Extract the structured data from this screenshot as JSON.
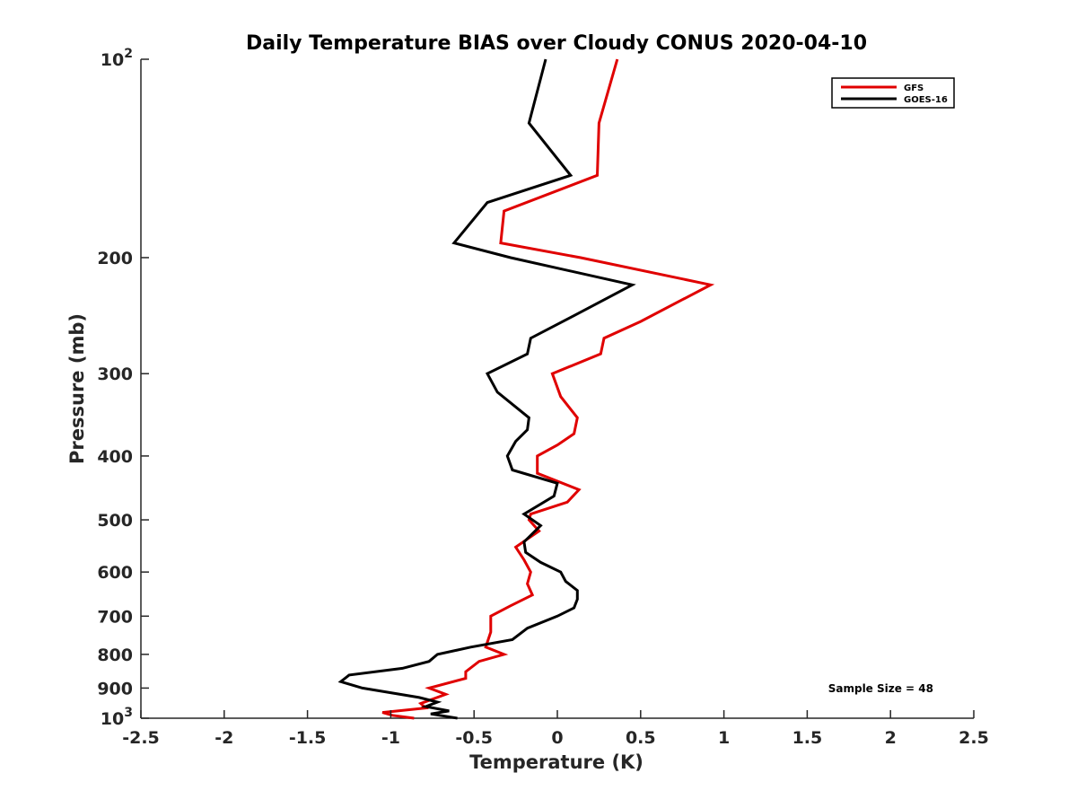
{
  "chart_data": {
    "type": "line",
    "title": "Daily Temperature BIAS over Cloudy CONUS 2020-04-10",
    "xlabel": "Temperature (K)",
    "ylabel": "Pressure (mb)",
    "xlim": [
      -2.5,
      2.5
    ],
    "ylim": [
      100,
      1000
    ],
    "y_scale": "log",
    "y_reversed": true,
    "x_ticks": [
      -2.5,
      -2,
      -1.5,
      -1,
      -0.5,
      0,
      0.5,
      1,
      1.5,
      2,
      2.5
    ],
    "x_tick_labels": [
      "-2.5",
      "-2",
      "-1.5",
      "-1",
      "-0.5",
      "0",
      "0.5",
      "1",
      "1.5",
      "2",
      "2.5"
    ],
    "y_ticks": [
      {
        "value": 100,
        "base": "10",
        "exp": "2"
      },
      {
        "value": 200,
        "label": "200"
      },
      {
        "value": 300,
        "label": "300"
      },
      {
        "value": 400,
        "label": "400"
      },
      {
        "value": 500,
        "label": "500"
      },
      {
        "value": 600,
        "label": "600"
      },
      {
        "value": 700,
        "label": "700"
      },
      {
        "value": 800,
        "label": "800"
      },
      {
        "value": 900,
        "label": "900"
      },
      {
        "value": 1000,
        "base": "10",
        "exp": "3"
      }
    ],
    "grid": false,
    "legend_position": "top-right",
    "annotation": "Sample Size = 48",
    "series": [
      {
        "name": "GFS",
        "color": "#e00000",
        "points": [
          [
            0.36,
            100
          ],
          [
            0.25,
            125
          ],
          [
            0.24,
            150
          ],
          [
            -0.32,
            170
          ],
          [
            -0.34,
            190
          ],
          [
            0.14,
            200
          ],
          [
            0.92,
            220
          ],
          [
            0.5,
            250
          ],
          [
            0.28,
            265
          ],
          [
            0.26,
            280
          ],
          [
            -0.03,
            300
          ],
          [
            0.02,
            325
          ],
          [
            0.12,
            350
          ],
          [
            0.1,
            370
          ],
          [
            0.0,
            385
          ],
          [
            -0.12,
            400
          ],
          [
            -0.12,
            425
          ],
          [
            0.13,
            450
          ],
          [
            0.06,
            470
          ],
          [
            -0.16,
            490
          ],
          [
            -0.17,
            500
          ],
          [
            -0.11,
            520
          ],
          [
            -0.25,
            550
          ],
          [
            -0.2,
            575
          ],
          [
            -0.16,
            600
          ],
          [
            -0.18,
            625
          ],
          [
            -0.15,
            650
          ],
          [
            -0.28,
            675
          ],
          [
            -0.4,
            700
          ],
          [
            -0.4,
            740
          ],
          [
            -0.43,
            780
          ],
          [
            -0.32,
            800
          ],
          [
            -0.47,
            820
          ],
          [
            -0.55,
            850
          ],
          [
            -0.55,
            870
          ],
          [
            -0.77,
            900
          ],
          [
            -0.67,
            920
          ],
          [
            -0.82,
            950
          ],
          [
            -0.79,
            965
          ],
          [
            -1.05,
            980
          ],
          [
            -0.99,
            990
          ],
          [
            -0.86,
            1000
          ]
        ]
      },
      {
        "name": "GOES-16",
        "color": "#000000",
        "points": [
          [
            -0.07,
            100
          ],
          [
            -0.17,
            125
          ],
          [
            0.08,
            150
          ],
          [
            -0.42,
            165
          ],
          [
            -0.62,
            190
          ],
          [
            -0.28,
            200
          ],
          [
            0.45,
            220
          ],
          [
            0.1,
            245
          ],
          [
            -0.16,
            265
          ],
          [
            -0.18,
            280
          ],
          [
            -0.42,
            300
          ],
          [
            -0.36,
            320
          ],
          [
            -0.17,
            350
          ],
          [
            -0.18,
            365
          ],
          [
            -0.25,
            380
          ],
          [
            -0.3,
            400
          ],
          [
            -0.27,
            420
          ],
          [
            0.0,
            440
          ],
          [
            -0.02,
            460
          ],
          [
            -0.2,
            490
          ],
          [
            -0.1,
            510
          ],
          [
            -0.2,
            540
          ],
          [
            -0.19,
            560
          ],
          [
            -0.1,
            580
          ],
          [
            0.02,
            600
          ],
          [
            0.05,
            620
          ],
          [
            0.12,
            640
          ],
          [
            0.12,
            660
          ],
          [
            0.1,
            680
          ],
          [
            0.0,
            700
          ],
          [
            -0.18,
            730
          ],
          [
            -0.27,
            760
          ],
          [
            -0.52,
            780
          ],
          [
            -0.72,
            800
          ],
          [
            -0.77,
            820
          ],
          [
            -0.93,
            840
          ],
          [
            -1.25,
            860
          ],
          [
            -1.3,
            880
          ],
          [
            -1.17,
            900
          ],
          [
            -0.83,
            930
          ],
          [
            -0.72,
            945
          ],
          [
            -0.79,
            960
          ],
          [
            -0.65,
            975
          ],
          [
            -0.76,
            985
          ],
          [
            -0.6,
            1000
          ]
        ]
      }
    ]
  }
}
